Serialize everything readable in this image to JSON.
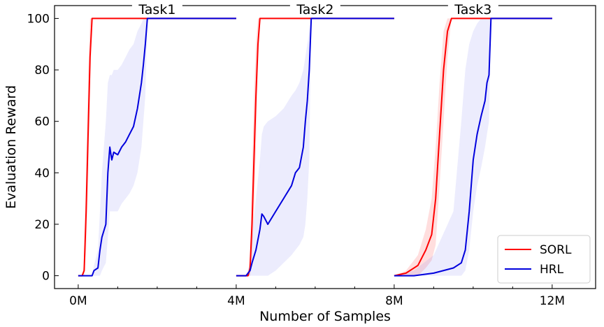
{
  "chart_data": {
    "type": "line",
    "xlabel": "Number of Samples",
    "ylabel": "Evaluation Reward",
    "xlim": [
      -0.6,
      13.1
    ],
    "ylim": [
      -5,
      105
    ],
    "x_ticks": [
      {
        "value": 0,
        "label": "0M"
      },
      {
        "value": 4,
        "label": "4M"
      },
      {
        "value": 8,
        "label": "8M"
      },
      {
        "value": 12,
        "label": "12M"
      }
    ],
    "x_minor_ticks": [
      1,
      2,
      3,
      5,
      6,
      7,
      9,
      10,
      11
    ],
    "y_ticks": [
      {
        "value": 0,
        "label": "0"
      },
      {
        "value": 20,
        "label": "20"
      },
      {
        "value": 40,
        "label": "40"
      },
      {
        "value": 60,
        "label": "60"
      },
      {
        "value": 80,
        "label": "80"
      },
      {
        "value": 100,
        "label": "100"
      }
    ],
    "panel_titles": [
      {
        "label": "Task1",
        "x": 2
      },
      {
        "label": "Task2",
        "x": 6
      },
      {
        "label": "Task3",
        "x": 10
      }
    ],
    "legend": {
      "placement": "bottom-right"
    },
    "series": [
      {
        "name": "SORL",
        "color": "#ff0000",
        "band_color": "#ff0000",
        "segments": [
          {
            "x": [
              0,
              0.1,
              0.15,
              0.2,
              0.25,
              0.3,
              0.35,
              4
            ],
            "y": [
              0,
              0,
              2,
              25,
              55,
              85,
              100,
              100
            ],
            "lower": [
              0,
              0,
              0,
              10,
              35,
              70,
              100,
              100
            ],
            "upper": [
              0,
              0,
              5,
              40,
              75,
              100,
              100,
              100
            ]
          },
          {
            "x": [
              4,
              4.3,
              4.35,
              4.4,
              4.45,
              4.5,
              4.55,
              4.6,
              8
            ],
            "y": [
              0,
              0,
              3,
              20,
              45,
              70,
              90,
              100,
              100
            ],
            "lower": [
              0,
              0,
              0,
              5,
              25,
              50,
              80,
              100,
              100
            ],
            "upper": [
              0,
              0,
              8,
              40,
              70,
              90,
              100,
              100,
              100
            ]
          },
          {
            "x": [
              8,
              8.3,
              8.6,
              8.8,
              8.95,
              9.05,
              9.15,
              9.25,
              9.35,
              9.45,
              12
            ],
            "y": [
              0,
              1,
              4,
              10,
              16,
              30,
              55,
              80,
              95,
              100,
              100
            ],
            "lower": [
              0,
              0,
              0,
              3,
              6,
              12,
              35,
              60,
              85,
              100,
              100
            ],
            "upper": [
              0,
              2,
              8,
              18,
              30,
              50,
              75,
              95,
              100,
              100,
              100
            ]
          }
        ]
      },
      {
        "name": "HRL",
        "color": "#0000dd",
        "band_color": "#6a6aee",
        "segments": [
          {
            "x": [
              0,
              0.35,
              0.4,
              0.5,
              0.55,
              0.6,
              0.7,
              0.75,
              0.8,
              0.85,
              0.9,
              1.0,
              1.1,
              1.2,
              1.3,
              1.4,
              1.5,
              1.6,
              1.65,
              1.7,
              1.75,
              4
            ],
            "y": [
              0,
              0,
              2,
              3,
              10,
              15,
              20,
              40,
              50,
              45,
              48,
              47,
              50,
              52,
              55,
              58,
              65,
              75,
              82,
              90,
              100,
              100
            ],
            "lower": [
              0,
              0,
              0,
              0,
              0,
              2,
              5,
              15,
              25,
              25,
              25,
              25,
              28,
              30,
              32,
              35,
              40,
              50,
              60,
              70,
              100,
              100
            ],
            "upper": [
              0,
              0,
              4,
              10,
              25,
              40,
              60,
              75,
              78,
              78,
              80,
              80,
              82,
              85,
              88,
              90,
              95,
              98,
              100,
              100,
              100,
              100
            ]
          },
          {
            "x": [
              4,
              4.25,
              4.35,
              4.4,
              4.5,
              4.6,
              4.65,
              4.7,
              4.8,
              5.0,
              5.2,
              5.4,
              5.5,
              5.6,
              5.7,
              5.75,
              5.8,
              5.85,
              5.9,
              8
            ],
            "y": [
              0,
              0,
              2,
              5,
              10,
              18,
              24,
              23,
              20,
              25,
              30,
              35,
              40,
              42,
              50,
              60,
              68,
              80,
              100,
              100
            ],
            "lower": [
              0,
              0,
              0,
              0,
              0,
              0,
              0,
              0,
              0,
              2,
              5,
              8,
              10,
              12,
              15,
              20,
              30,
              45,
              100,
              100
            ],
            "upper": [
              0,
              0,
              5,
              15,
              30,
              45,
              55,
              58,
              60,
              62,
              65,
              70,
              72,
              75,
              80,
              85,
              90,
              95,
              100,
              100
            ]
          },
          {
            "x": [
              8,
              8.5,
              9.0,
              9.5,
              9.7,
              9.8,
              9.9,
              10.0,
              10.1,
              10.2,
              10.3,
              10.35,
              10.4,
              10.45,
              12
            ],
            "y": [
              0,
              0,
              1,
              3,
              5,
              10,
              25,
              45,
              55,
              62,
              68,
              75,
              78,
              100,
              100
            ],
            "lower": [
              0,
              0,
              0,
              0,
              0,
              2,
              10,
              25,
              35,
              42,
              50,
              55,
              60,
              100,
              100
            ],
            "upper": [
              0,
              2,
              8,
              25,
              60,
              80,
              90,
              95,
              98,
              100,
              100,
              100,
              100,
              100,
              100
            ]
          }
        ]
      }
    ]
  }
}
